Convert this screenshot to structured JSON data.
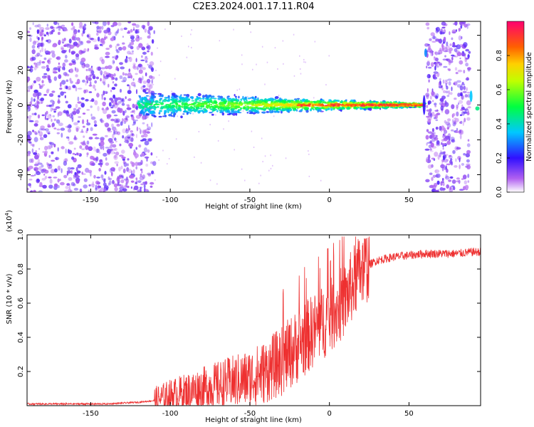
{
  "title": "C2E3.2024.001.17.11.R04",
  "chart_data": [
    {
      "type": "heatmap",
      "xlabel": "Height of straight line (km)",
      "ylabel": "Frequency (Hz)",
      "xlim": [
        -190,
        95
      ],
      "ylim": [
        -50,
        48
      ],
      "xticks": [
        -150,
        -100,
        -50,
        0,
        50
      ],
      "yticks": [
        40,
        20,
        0,
        -20,
        -40
      ],
      "colorbar": {
        "label": "Normalized spectral amplitude",
        "range": [
          0.0,
          1.0
        ],
        "ticks": [
          0.0,
          0.2,
          0.4,
          0.6,
          0.8
        ],
        "tick_labels": [
          "0.0",
          "0.2",
          "0.4",
          "0.6",
          "0.8"
        ],
        "colormap": [
          "#ffffff",
          "#7020e0",
          "#0030ff",
          "#00ffff",
          "#00ff00",
          "#ffff00",
          "#ff8000",
          "#ff0060"
        ]
      },
      "features": {
        "noise_regions_km": [
          [
            -190,
            -110
          ],
          [
            61,
            88
          ]
        ],
        "signal_band_km": [
          -120,
          60
        ],
        "signal_center_hz": 0
      }
    },
    {
      "type": "line",
      "xlabel": "Height of straight line (km)",
      "ylabel": "SNR (10 * v/v)",
      "ylabel_multiplier": "(x10",
      "ylabel_multiplier_exp": "4",
      "ylabel_multiplier_close": ")",
      "xlim": [
        -190,
        95
      ],
      "ylim": [
        0,
        1.0
      ],
      "xticks": [
        -150,
        -100,
        -50,
        0,
        50
      ],
      "yticks": [
        0.2,
        0.4,
        0.6,
        0.8,
        1.0
      ],
      "line_color": "#ee3030",
      "envelope": {
        "x": [
          -190,
          -140,
          -120,
          -110,
          -100,
          -90,
          -80,
          -70,
          -60,
          -50,
          -40,
          -30,
          -20,
          -10,
          0,
          10,
          15,
          20,
          30,
          40,
          50,
          60,
          70,
          80,
          90,
          95
        ],
        "y": [
          0.01,
          0.01,
          0.02,
          0.03,
          0.06,
          0.08,
          0.1,
          0.12,
          0.14,
          0.16,
          0.2,
          0.26,
          0.35,
          0.44,
          0.52,
          0.62,
          0.72,
          0.8,
          0.85,
          0.87,
          0.88,
          0.89,
          0.89,
          0.89,
          0.9,
          0.9
        ]
      }
    }
  ]
}
